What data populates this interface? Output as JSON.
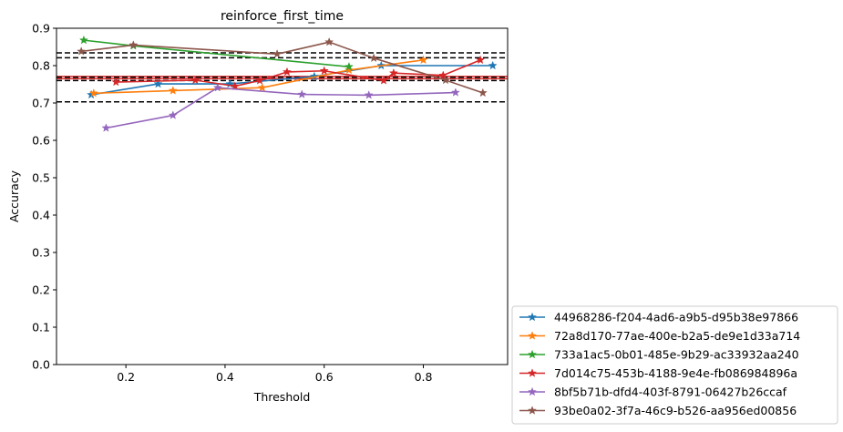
{
  "chart_data": {
    "type": "line",
    "title": "reinforce_first_time",
    "xlabel": "Threshold",
    "ylabel": "Accuracy",
    "xlim": [
      0.06,
      0.97
    ],
    "ylim": [
      0.0,
      0.9
    ],
    "xticks": [
      0.2,
      0.4,
      0.6,
      0.8
    ],
    "yticks": [
      0.0,
      0.1,
      0.2,
      0.3,
      0.4,
      0.5,
      0.6,
      0.7,
      0.8,
      0.9
    ],
    "grid": false,
    "legend_position": "lower-right-outside",
    "marker": "star",
    "series": [
      {
        "name": "44968286-f204-4ad6-a9b5-d95b38e97866",
        "color": "#1f77b4",
        "x": [
          0.13,
          0.265,
          0.41,
          0.58,
          0.715,
          0.94
        ],
        "y": [
          0.722,
          0.751,
          0.751,
          0.771,
          0.8,
          0.8
        ]
      },
      {
        "name": "72a8d170-77ae-400e-b2a5-de9e1d33a714",
        "color": "#ff7f0e",
        "x": [
          0.135,
          0.295,
          0.475,
          0.65,
          0.8
        ],
        "y": [
          0.726,
          0.733,
          0.741,
          0.788,
          0.815
        ]
      },
      {
        "name": "733a1ac5-0b01-485e-9b29-ac33932aa240",
        "color": "#2ca02c",
        "x": [
          0.115,
          0.215,
          0.65
        ],
        "y": [
          0.868,
          0.853,
          0.797
        ]
      },
      {
        "name": "7d014c75-453b-4188-9e4e-fb086984896a",
        "color": "#d62728",
        "x": [
          0.18,
          0.34,
          0.42,
          0.47,
          0.525,
          0.6,
          0.72,
          0.74,
          0.84,
          0.915
        ],
        "y": [
          0.756,
          0.761,
          0.745,
          0.76,
          0.783,
          0.786,
          0.76,
          0.78,
          0.774,
          0.815
        ]
      },
      {
        "name": "8bf5b71b-dfd4-403f-8791-06427b26ccaf",
        "color": "#9467bd",
        "x": [
          0.16,
          0.295,
          0.385,
          0.555,
          0.69,
          0.865
        ],
        "y": [
          0.633,
          0.667,
          0.741,
          0.723,
          0.721,
          0.728
        ]
      },
      {
        "name": "93be0a02-3f7a-46c9-b526-aa956ed00856",
        "color": "#8c564b",
        "x": [
          0.11,
          0.215,
          0.505,
          0.61,
          0.7,
          0.845,
          0.92
        ],
        "y": [
          0.838,
          0.855,
          0.831,
          0.863,
          0.82,
          0.761,
          0.727
        ]
      }
    ],
    "reference_lines": {
      "style": "dashed",
      "color": "#000000",
      "y": [
        0.703,
        0.76,
        0.769,
        0.821,
        0.834
      ]
    },
    "red_lines": {
      "color": "#d62728",
      "y": [
        0.765,
        0.771
      ]
    }
  }
}
